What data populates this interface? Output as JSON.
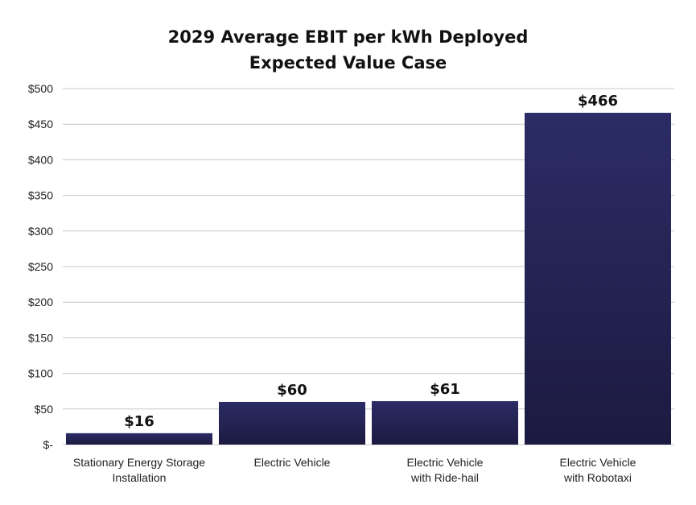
{
  "chart_data": {
    "type": "bar",
    "title": "2029 Average EBIT per kWh Deployed",
    "subtitle": "Expected Value Case",
    "categories": [
      [
        "Stationary Energy Storage",
        "Installation"
      ],
      [
        "Electric Vehicle"
      ],
      [
        "Electric Vehicle",
        "with Ride-hail"
      ],
      [
        "Electric Vehicle",
        "with Robotaxi"
      ]
    ],
    "values": [
      16,
      60,
      61,
      466
    ],
    "data_labels": [
      "$16",
      "$60",
      "$61",
      "$466"
    ],
    "y_ticks": [
      0,
      50,
      100,
      150,
      200,
      250,
      300,
      350,
      400,
      450,
      500
    ],
    "y_tick_labels": [
      "$-",
      "$50",
      "$100",
      "$150",
      "$200",
      "$250",
      "$300",
      "$350",
      "$400",
      "$450",
      "$500"
    ],
    "ylim": [
      0,
      500
    ],
    "xlabel": "",
    "ylabel": "",
    "grid": true,
    "legend": "none",
    "colors": {
      "bar_top": "#2c2c66",
      "bar_bottom": "#1c1a40",
      "grid": "#c8c8c8"
    }
  }
}
